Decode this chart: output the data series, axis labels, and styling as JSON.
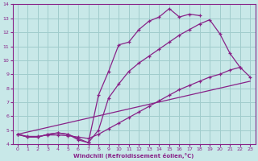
{
  "xlabel": "Windchill (Refroidissement éolien,°C)",
  "xlim": [
    -0.5,
    23.5
  ],
  "ylim": [
    4,
    14
  ],
  "xticks": [
    0,
    1,
    2,
    3,
    4,
    5,
    6,
    7,
    8,
    9,
    10,
    11,
    12,
    13,
    14,
    15,
    16,
    17,
    18,
    19,
    20,
    21,
    22,
    23
  ],
  "yticks": [
    4,
    5,
    6,
    7,
    8,
    9,
    10,
    11,
    12,
    13,
    14
  ],
  "bg_color": "#c8e8e8",
  "grid_color": "#a0cccc",
  "line_color": "#882288",
  "line1_x": [
    0,
    1,
    2,
    3,
    4,
    5,
    6,
    7,
    8,
    9,
    10,
    11,
    12,
    13,
    14,
    15,
    16,
    17,
    18
  ],
  "line1_y": [
    4.7,
    4.5,
    4.5,
    4.7,
    4.8,
    4.7,
    4.3,
    4.1,
    7.5,
    9.2,
    11.1,
    11.3,
    12.2,
    12.8,
    13.1,
    13.7,
    13.1,
    13.3,
    13.2
  ],
  "line2_x": [
    0,
    1,
    2,
    3,
    4,
    5,
    6,
    7,
    8,
    9,
    10,
    11,
    12,
    13,
    14,
    15,
    16,
    17,
    18,
    19,
    20,
    21,
    22
  ],
  "line2_y": [
    4.7,
    4.5,
    4.5,
    4.7,
    4.8,
    4.7,
    4.4,
    4.1,
    5.0,
    7.3,
    8.3,
    9.2,
    9.8,
    10.3,
    10.8,
    11.3,
    11.8,
    12.2,
    12.6,
    12.9,
    11.9,
    10.5,
    9.5
  ],
  "line3_x": [
    0,
    1,
    2,
    3,
    4,
    5,
    6,
    7,
    8,
    9,
    10,
    11,
    12,
    13,
    14,
    15,
    16,
    17,
    18,
    19,
    20,
    21,
    22,
    23
  ],
  "line3_y": [
    4.7,
    4.55,
    4.55,
    4.65,
    4.65,
    4.6,
    4.5,
    4.4,
    4.7,
    5.1,
    5.5,
    5.9,
    6.3,
    6.7,
    7.1,
    7.5,
    7.9,
    8.2,
    8.5,
    8.8,
    9.0,
    9.3,
    9.5,
    8.8
  ],
  "line4_x": [
    0,
    23
  ],
  "line4_y": [
    4.7,
    8.5
  ]
}
